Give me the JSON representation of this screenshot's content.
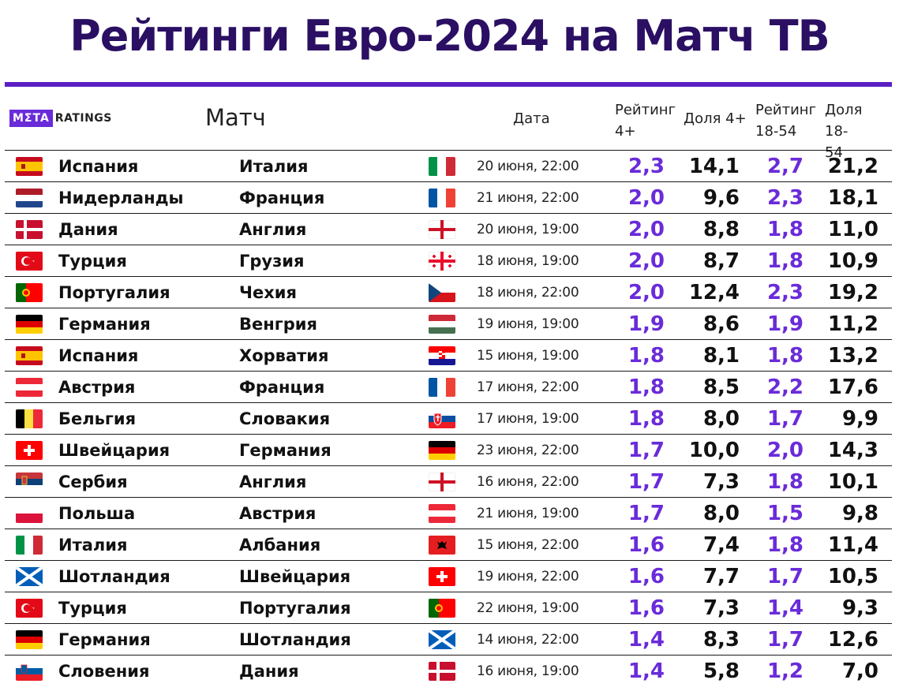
{
  "title": "Рейтинги Евро-2024 на Матч ТВ",
  "brand": {
    "box": "MΣTA",
    "text": "RATINGS"
  },
  "header": {
    "match": "Матч",
    "date": "Дата",
    "rating4": [
      "Рейтинг",
      "4+"
    ],
    "share4": "Доля 4+",
    "rating1854": [
      "Рейтинг",
      "18-54"
    ],
    "share1854": [
      "Доля 18-",
      "54"
    ]
  },
  "colors": {
    "accent": "#6a2bd9",
    "title": "#2a0f63"
  },
  "rows": [
    {
      "team1": "Испания",
      "team2": "Италия",
      "flag1": "spain-flag",
      "flag2": "italy-flag",
      "date": "20 июня, 22:00",
      "r4": "2,3",
      "d4": "14,1",
      "r18": "2,7",
      "d18": "21,2"
    },
    {
      "team1": "Нидерланды",
      "team2": "Франция",
      "flag1": "netherlands-flag",
      "flag2": "france-flag",
      "date": "21 июня, 22:00",
      "r4": "2,0",
      "d4": "9,6",
      "r18": "2,3",
      "d18": "18,1"
    },
    {
      "team1": "Дания",
      "team2": "Англия",
      "flag1": "denmark-flag",
      "flag2": "england-flag",
      "date": "20 июня, 19:00",
      "r4": "2,0",
      "d4": "8,8",
      "r18": "1,8",
      "d18": "11,0"
    },
    {
      "team1": "Турция",
      "team2": "Грузия",
      "flag1": "turkey-flag",
      "flag2": "georgia-flag",
      "date": "18 июня, 19:00",
      "r4": "2,0",
      "d4": "8,7",
      "r18": "1,8",
      "d18": "10,9"
    },
    {
      "team1": "Португалия",
      "team2": "Чехия",
      "flag1": "portugal-flag",
      "flag2": "czechia-flag",
      "date": "18 июня, 22:00",
      "r4": "2,0",
      "d4": "12,4",
      "r18": "2,3",
      "d18": "19,2"
    },
    {
      "team1": "Германия",
      "team2": "Венгрия",
      "flag1": "germany-flag",
      "flag2": "hungary-flag",
      "date": "19 июня, 19:00",
      "r4": "1,9",
      "d4": "8,6",
      "r18": "1,9",
      "d18": "11,2"
    },
    {
      "team1": "Испания",
      "team2": "Хорватия",
      "flag1": "spain-flag",
      "flag2": "croatia-flag",
      "date": "15 июня, 19:00",
      "r4": "1,8",
      "d4": "8,1",
      "r18": "1,8",
      "d18": "13,2"
    },
    {
      "team1": "Австрия",
      "team2": "Франция",
      "flag1": "austria-flag",
      "flag2": "france-flag",
      "date": "17 июня, 22:00",
      "r4": "1,8",
      "d4": "8,5",
      "r18": "2,2",
      "d18": "17,6"
    },
    {
      "team1": "Бельгия",
      "team2": "Словакия",
      "flag1": "belgium-flag",
      "flag2": "slovakia-flag",
      "date": "17 июня, 19:00",
      "r4": "1,8",
      "d4": "8,0",
      "r18": "1,7",
      "d18": "9,9"
    },
    {
      "team1": "Швейцария",
      "team2": "Германия",
      "flag1": "switzerland-flag",
      "flag2": "germany-flag",
      "date": "23 июня, 22:00",
      "r4": "1,7",
      "d4": "10,0",
      "r18": "2,0",
      "d18": "14,3"
    },
    {
      "team1": "Сербия",
      "team2": "Англия",
      "flag1": "serbia-flag",
      "flag2": "england-flag",
      "date": "16 июня, 22:00",
      "r4": "1,7",
      "d4": "7,3",
      "r18": "1,8",
      "d18": "10,1"
    },
    {
      "team1": "Польша",
      "team2": "Австрия",
      "flag1": "poland-flag",
      "flag2": "austria-flag",
      "date": "21 июня, 19:00",
      "r4": "1,7",
      "d4": "8,0",
      "r18": "1,5",
      "d18": "9,8"
    },
    {
      "team1": "Италия",
      "team2": "Албания",
      "flag1": "italy-flag",
      "flag2": "albania-flag",
      "date": "15 июня, 22:00",
      "r4": "1,6",
      "d4": "7,4",
      "r18": "1,8",
      "d18": "11,4"
    },
    {
      "team1": "Шотландия",
      "team2": "Швейцария",
      "flag1": "scotland-flag",
      "flag2": "switzerland-flag",
      "date": "19 июня, 22:00",
      "r4": "1,6",
      "d4": "7,7",
      "r18": "1,7",
      "d18": "10,5"
    },
    {
      "team1": "Турция",
      "team2": "Португалия",
      "flag1": "turkey-flag",
      "flag2": "portugal-flag",
      "date": "22 июня, 19:00",
      "r4": "1,6",
      "d4": "7,3",
      "r18": "1,4",
      "d18": "9,3"
    },
    {
      "team1": "Германия",
      "team2": "Шотландия",
      "flag1": "germany-flag",
      "flag2": "scotland-flag",
      "date": "14 июня, 22:00",
      "r4": "1,4",
      "d4": "8,3",
      "r18": "1,7",
      "d18": "12,6"
    },
    {
      "team1": "Словения",
      "team2": "Дания",
      "flag1": "slovenia-flag",
      "flag2": "denmark-flag",
      "date": "16 июня, 19:00",
      "r4": "1,4",
      "d4": "5,8",
      "r18": "1,2",
      "d18": "7,0"
    }
  ]
}
